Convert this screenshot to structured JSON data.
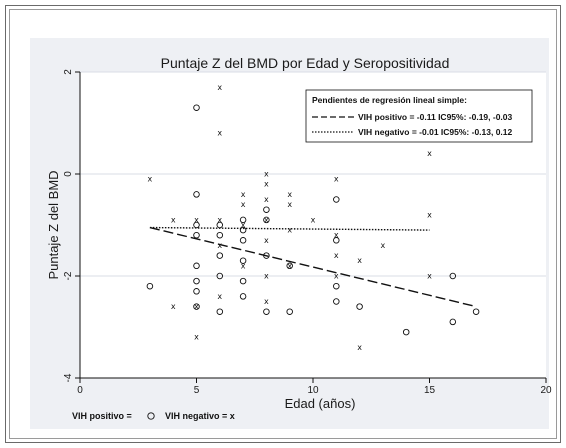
{
  "chart_data": {
    "type": "scatter",
    "title": "Puntaje Z del BMD por Edad y Seropositividad",
    "xlabel": "Edad (años)",
    "ylabel": "Puntaje Z del BMD",
    "xlim": [
      0,
      20
    ],
    "ylim": [
      -4,
      2
    ],
    "x_ticks": [
      "0",
      "5",
      "10",
      "15",
      "20"
    ],
    "y_ticks": [
      "2",
      "0",
      "-2",
      "-4"
    ],
    "x_tick_values": [
      0,
      5,
      10,
      15,
      20
    ],
    "y_tick_values": [
      2,
      0,
      -2,
      -4
    ],
    "grid": "horizontal",
    "legend_title": "Pendientes de regresión lineal simple:",
    "legend_entries": [
      "VIH positivo  =  -0.11 IC95%: -0.19, -0.03",
      "VIH negativo  =  -0.01 IC95%: -0.13, 0.12"
    ],
    "bottom_legend": {
      "positive_label": "VIH positivo = ",
      "negative_label": "VIH negativo = x"
    },
    "series": [
      {
        "marker": "circle",
        "points": [
          [
            3,
            -2.2
          ],
          [
            5,
            1.3
          ],
          [
            5,
            -0.4
          ],
          [
            5,
            -1.0
          ],
          [
            5,
            -1.2
          ],
          [
            5,
            -1.8
          ],
          [
            5,
            -2.1
          ],
          [
            5,
            -2.3
          ],
          [
            5,
            -2.6
          ],
          [
            6,
            -1.0
          ],
          [
            6,
            -1.2
          ],
          [
            6,
            -1.6
          ],
          [
            6,
            -2.0
          ],
          [
            6,
            -2.7
          ],
          [
            7,
            -0.9
          ],
          [
            7,
            -1.1
          ],
          [
            7,
            -1.3
          ],
          [
            7,
            -1.7
          ],
          [
            7,
            -2.1
          ],
          [
            7,
            -2.4
          ],
          [
            8,
            -0.7
          ],
          [
            8,
            -0.9
          ],
          [
            8,
            -1.6
          ],
          [
            8,
            -2.7
          ],
          [
            9,
            -1.8
          ],
          [
            9,
            -2.7
          ],
          [
            11,
            -0.5
          ],
          [
            11,
            -1.3
          ],
          [
            11,
            -2.2
          ],
          [
            11,
            -2.5
          ],
          [
            12,
            -2.6
          ],
          [
            14,
            -3.1
          ],
          [
            16,
            -2.0
          ],
          [
            16,
            -2.9
          ],
          [
            17,
            -2.7
          ]
        ],
        "trend": {
          "style": "dashed",
          "x": [
            3,
            17
          ],
          "y": [
            -1.05,
            -2.6
          ]
        }
      },
      {
        "marker": "x",
        "points": [
          [
            3,
            -0.1
          ],
          [
            4,
            -0.9
          ],
          [
            4,
            -2.6
          ],
          [
            5,
            -0.9
          ],
          [
            5,
            -2.6
          ],
          [
            5,
            -3.2
          ],
          [
            6,
            1.7
          ],
          [
            6,
            0.8
          ],
          [
            6,
            -0.9
          ],
          [
            6,
            -1.4
          ],
          [
            6,
            -2.4
          ],
          [
            7,
            -0.4
          ],
          [
            7,
            -0.6
          ],
          [
            7,
            -1.0
          ],
          [
            7,
            -1.8
          ],
          [
            8,
            0.0
          ],
          [
            8,
            -0.2
          ],
          [
            8,
            -0.5
          ],
          [
            8,
            -0.9
          ],
          [
            8,
            -1.3
          ],
          [
            8,
            -2.0
          ],
          [
            8,
            -2.5
          ],
          [
            9,
            -0.4
          ],
          [
            9,
            -0.6
          ],
          [
            9,
            -1.1
          ],
          [
            9,
            -1.8
          ],
          [
            10,
            -0.9
          ],
          [
            11,
            -0.1
          ],
          [
            11,
            -1.2
          ],
          [
            11,
            -1.6
          ],
          [
            11,
            -2.0
          ],
          [
            12,
            -1.7
          ],
          [
            12,
            -3.4
          ],
          [
            13,
            -1.4
          ],
          [
            15,
            0.4
          ],
          [
            15,
            -0.8
          ],
          [
            15,
            -2.0
          ]
        ],
        "trend": {
          "style": "dotted",
          "x": [
            3,
            15
          ],
          "y": [
            -1.05,
            -1.1
          ]
        }
      }
    ]
  }
}
